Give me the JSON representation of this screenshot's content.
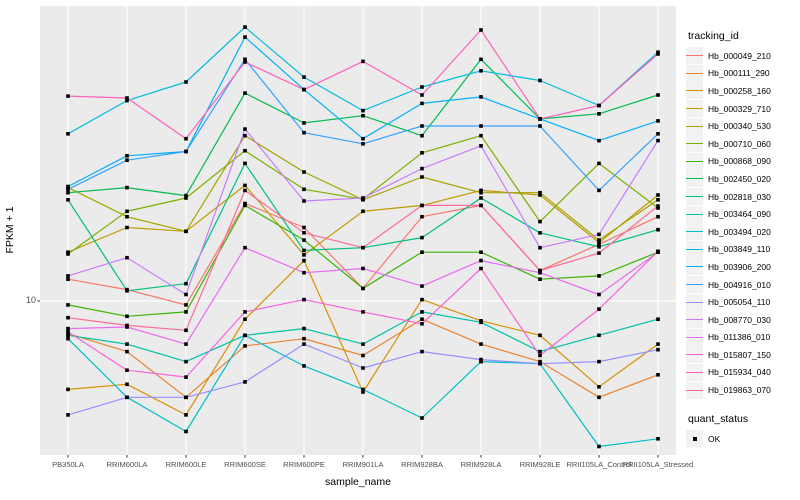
{
  "figure": {
    "background": "#FFFFFF",
    "panel_background": "#EBEBEB",
    "gridline_color": "#FFFFFF",
    "tick_color": "#333333",
    "tick_text_color": "#4D4D4D"
  },
  "x_axis": {
    "label": "sample_name",
    "categories": [
      "PB350LA",
      "RRIM600LA",
      "RRIM600LE",
      "RRIM600SE",
      "RRIM600PE",
      "RRIM901LA",
      "RRIM928BA",
      "RRIM928LA",
      "RRIM928LE",
      "RRII105LA_Control",
      "RRII105LA_Stressed"
    ]
  },
  "y_axis": {
    "label": "FPKM + 1",
    "scale": "log10",
    "tick_label": "10",
    "break_value": 10,
    "domain_log10": [
      0.4905,
      1.9755
    ]
  },
  "legend": {
    "tracking_title": "tracking_id",
    "quant_title": "quant_status",
    "quant_items": [
      {
        "label": "OK",
        "marker": "black-square"
      }
    ]
  },
  "chart_data": {
    "type": "line",
    "title": "",
    "xlabel": "sample_name",
    "ylabel": "FPKM + 1",
    "y_scale": "log10",
    "ylim": [
      3.1,
      95
    ],
    "grid": "on",
    "legend_position": "right",
    "marker": "square",
    "marker_color": "#000000",
    "categories": [
      "PB350LA",
      "RRIM600LA",
      "RRIM600LE",
      "RRIM600SE",
      "RRIM600PE",
      "RRIM901LA",
      "RRIM928BA",
      "RRIM928LA",
      "RRIM928LE",
      "RRII105LA_Control",
      "RRII105LA_Stressed"
    ],
    "series": [
      {
        "name": "Hb_000049_210",
        "color": "#F8766D",
        "values": [
          11.8,
          10.9,
          9.7,
          21.0,
          17.5,
          11.0,
          19.0,
          20.7,
          12.6,
          15.4,
          19.0
        ]
      },
      {
        "name": "Hb_000111_290",
        "color": "#EA8331",
        "values": [
          7.8,
          6.8,
          4.8,
          7.1,
          7.5,
          6.6,
          8.7,
          7.2,
          6.3,
          4.8,
          5.7
        ]
      },
      {
        "name": "Hb_000258_160",
        "color": "#D89000",
        "values": [
          5.1,
          5.3,
          4.2,
          8.7,
          13.6,
          5.0,
          10.1,
          8.6,
          7.7,
          5.2,
          7.2
        ]
      },
      {
        "name": "Hb_000329_710",
        "color": "#C09B00",
        "values": [
          14.5,
          17.5,
          17.0,
          24.1,
          14.2,
          19.8,
          20.7,
          23.2,
          22.4,
          15.6,
          22.4
        ]
      },
      {
        "name": "Hb_000340_530",
        "color": "#A3A500",
        "values": [
          23.7,
          19.0,
          17.0,
          35.2,
          26.7,
          21.6,
          25.7,
          22.8,
          22.8,
          15.9,
          21.6
        ]
      },
      {
        "name": "Hb_000710_060",
        "color": "#7CAE00",
        "values": [
          14.3,
          19.8,
          21.9,
          31.4,
          23.4,
          21.7,
          30.9,
          35.2,
          18.3,
          28.5,
          20.3
        ]
      },
      {
        "name": "Hb_000868_090",
        "color": "#39B600",
        "values": [
          9.7,
          8.9,
          9.2,
          20.7,
          15.9,
          11.0,
          14.5,
          14.5,
          11.8,
          12.1,
          14.5
        ]
      },
      {
        "name": "Hb_002450_020",
        "color": "#00BB4E",
        "values": [
          22.8,
          23.7,
          22.3,
          48.7,
          38.8,
          41.0,
          35.2,
          63.0,
          40.0,
          41.6,
          48.0
        ]
      },
      {
        "name": "Hb_002818_030",
        "color": "#00BF7D",
        "values": [
          21.6,
          10.8,
          11.4,
          28.5,
          14.7,
          15.0,
          16.2,
          21.9,
          16.8,
          15.1,
          17.2
        ]
      },
      {
        "name": "Hb_003464_090",
        "color": "#00C1A3",
        "values": [
          7.7,
          7.2,
          6.3,
          7.7,
          8.1,
          7.2,
          9.2,
          8.5,
          6.8,
          7.7,
          8.7
        ]
      },
      {
        "name": "Hb_003494_020",
        "color": "#00BFC4",
        "values": [
          7.5,
          4.8,
          3.7,
          7.7,
          6.1,
          5.1,
          4.1,
          6.3,
          6.2,
          3.3,
          3.5
        ]
      },
      {
        "name": "Hb_003849_110",
        "color": "#00BAE0",
        "values": [
          35.7,
          46.0,
          53.0,
          80.5,
          55.0,
          42.6,
          51.0,
          57.7,
          53.6,
          44.3,
          66.5
        ]
      },
      {
        "name": "Hb_003906_200",
        "color": "#00B0F6",
        "values": [
          23.9,
          30.2,
          31.2,
          74.6,
          50.0,
          34.4,
          45.0,
          47.3,
          40.0,
          33.9,
          39.4
        ]
      },
      {
        "name": "Hb_004916_010",
        "color": "#35A2FF",
        "values": [
          23.4,
          29.2,
          31.2,
          63.0,
          36.0,
          33.1,
          37.9,
          37.9,
          37.9,
          23.2,
          35.7
        ]
      },
      {
        "name": "Hb_005054_110",
        "color": "#9590FF",
        "values": [
          4.2,
          4.8,
          4.8,
          5.4,
          7.2,
          6.0,
          6.8,
          6.4,
          6.2,
          6.3,
          6.9
        ]
      },
      {
        "name": "Hb_008770_030",
        "color": "#C77CFF",
        "values": [
          12.1,
          13.9,
          10.5,
          37.0,
          21.4,
          21.9,
          27.4,
          32.6,
          15.0,
          16.6,
          33.9
        ]
      },
      {
        "name": "Hb_011386_010",
        "color": "#E76BF3",
        "values": [
          8.1,
          8.2,
          7.2,
          15.0,
          12.4,
          12.8,
          11.2,
          13.6,
          12.4,
          10.5,
          14.5
        ]
      },
      {
        "name": "Hb_015807_150",
        "color": "#FA62DB",
        "values": [
          7.9,
          5.9,
          5.6,
          9.2,
          10.1,
          9.2,
          8.4,
          12.8,
          6.6,
          9.4,
          14.6
        ]
      },
      {
        "name": "Hb_015934_040",
        "color": "#FF62BC",
        "values": [
          47.6,
          46.9,
          34.4,
          61.7,
          50.0,
          62.0,
          48.0,
          78.7,
          40.0,
          44.3,
          65.6
        ]
      },
      {
        "name": "Hb_019863_070",
        "color": "#FF6A98",
        "values": [
          8.8,
          8.3,
          8.0,
          23.2,
          16.8,
          15.0,
          20.7,
          20.7,
          12.6,
          14.4,
          20.6
        ]
      }
    ]
  }
}
